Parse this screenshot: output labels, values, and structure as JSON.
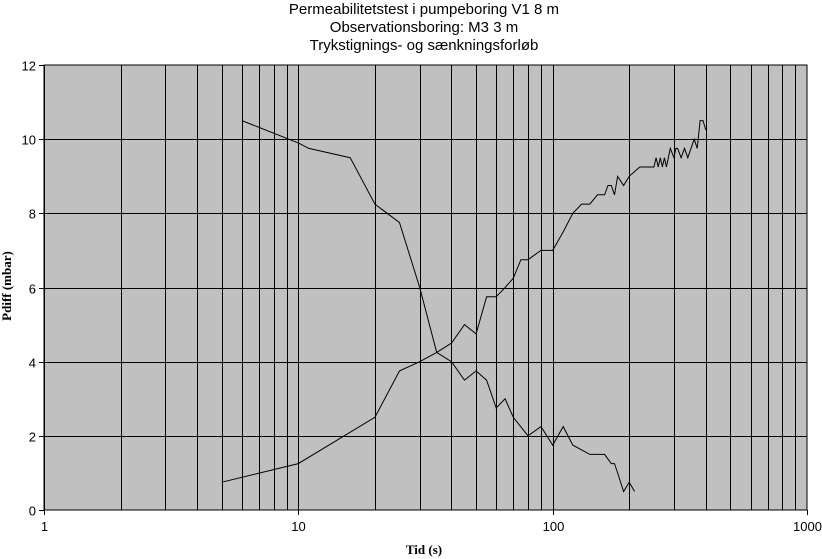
{
  "chart_data": {
    "type": "line",
    "title_lines": [
      "Permeabilitetstest i pumpeboring V1 8 m",
      "Observationsboring: M3 3 m",
      "Trykstignings- og sænkningsforløb"
    ],
    "xlabel": "Tid (s)",
    "ylabel": "Pdiff (mbar)",
    "x_scale": "log",
    "xlim": [
      1,
      1000
    ],
    "ylim": [
      0,
      12
    ],
    "x_tick_labels": [
      "1",
      "10",
      "100",
      "1000"
    ],
    "y_tick_labels": [
      "0",
      "2",
      "4",
      "6",
      "8",
      "10",
      "12"
    ],
    "grid": true,
    "legend": "none",
    "colors": {
      "plot_background": "#c0c0c0",
      "grid": "#000000",
      "line": "#000000"
    },
    "series": [
      {
        "x": [
          5,
          10,
          20,
          25,
          30,
          35,
          40,
          45,
          50,
          55,
          60,
          65,
          70,
          75,
          80,
          90,
          100,
          110,
          120,
          130,
          140,
          150,
          160,
          165,
          170,
          175,
          180,
          190,
          200,
          220,
          250,
          255,
          260,
          265,
          270,
          275,
          280,
          290,
          300,
          305,
          310,
          320,
          330,
          340,
          350,
          360,
          370,
          380,
          390,
          400
        ],
        "y": [
          0.75,
          1.25,
          2.5,
          3.75,
          4.0,
          4.25,
          4.5,
          5.0,
          4.75,
          5.75,
          5.75,
          6.0,
          6.25,
          6.75,
          6.75,
          7.0,
          7.0,
          7.5,
          8.0,
          8.25,
          8.25,
          8.5,
          8.5,
          8.75,
          8.75,
          8.5,
          9.0,
          8.75,
          9.0,
          9.25,
          9.25,
          9.5,
          9.25,
          9.5,
          9.25,
          9.5,
          9.25,
          9.75,
          9.5,
          9.75,
          9.75,
          9.5,
          9.75,
          9.5,
          9.75,
          10.0,
          9.75,
          10.5,
          10.5,
          10.25
        ]
      },
      {
        "x": [
          6,
          10,
          11,
          16,
          20,
          25,
          30,
          35,
          40,
          45,
          50,
          55,
          60,
          65,
          70,
          80,
          90,
          100,
          110,
          120,
          140,
          160,
          170,
          175,
          180,
          190,
          200,
          210
        ],
        "y": [
          10.5,
          9.9,
          9.75,
          9.5,
          8.25,
          7.75,
          6.0,
          4.25,
          4.0,
          3.5,
          3.75,
          3.5,
          2.75,
          3.0,
          2.5,
          2.0,
          2.25,
          1.75,
          2.25,
          1.75,
          1.5,
          1.5,
          1.25,
          1.25,
          1.0,
          0.5,
          0.75,
          0.5
        ]
      }
    ]
  }
}
